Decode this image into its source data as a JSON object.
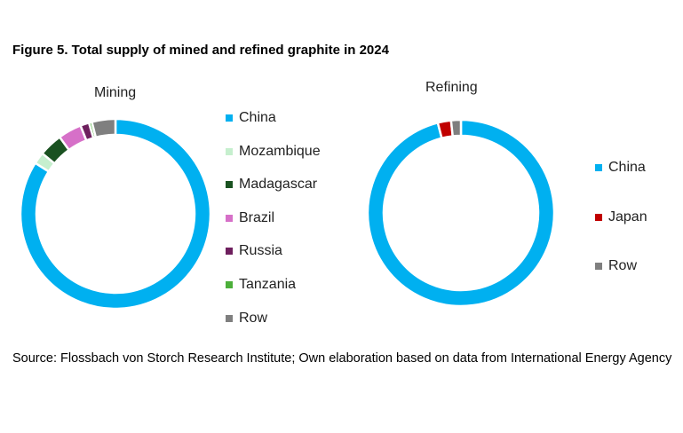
{
  "chart_data": [
    {
      "type": "pie",
      "subtype": "donut",
      "title": "Mining",
      "categories": [
        "China",
        "Mozambique",
        "Madagascar",
        "Brazil",
        "Russia",
        "Tanzania",
        "Row"
      ],
      "values": [
        84,
        2,
        4,
        4,
        1.5,
        0.5,
        4
      ],
      "colors": [
        "#00B0F0",
        "#C6EFCE",
        "#1A5221",
        "#D670C8",
        "#6E1F5E",
        "#4CAF3A",
        "#7F7F7F"
      ],
      "legend": "right"
    },
    {
      "type": "pie",
      "subtype": "donut",
      "title": "Refining",
      "categories": [
        "China",
        "Japan",
        "Row"
      ],
      "values": [
        96,
        2.3,
        1.7
      ],
      "colors": [
        "#00B0F0",
        "#C00000",
        "#7F7F7F"
      ],
      "legend": "right"
    }
  ],
  "title": "Figure 5. Total supply of mined and refined graphite in 2024",
  "source": "Source: Flossbach von Storch Research Institute; Own elaboration based on data from International Energy Agency"
}
